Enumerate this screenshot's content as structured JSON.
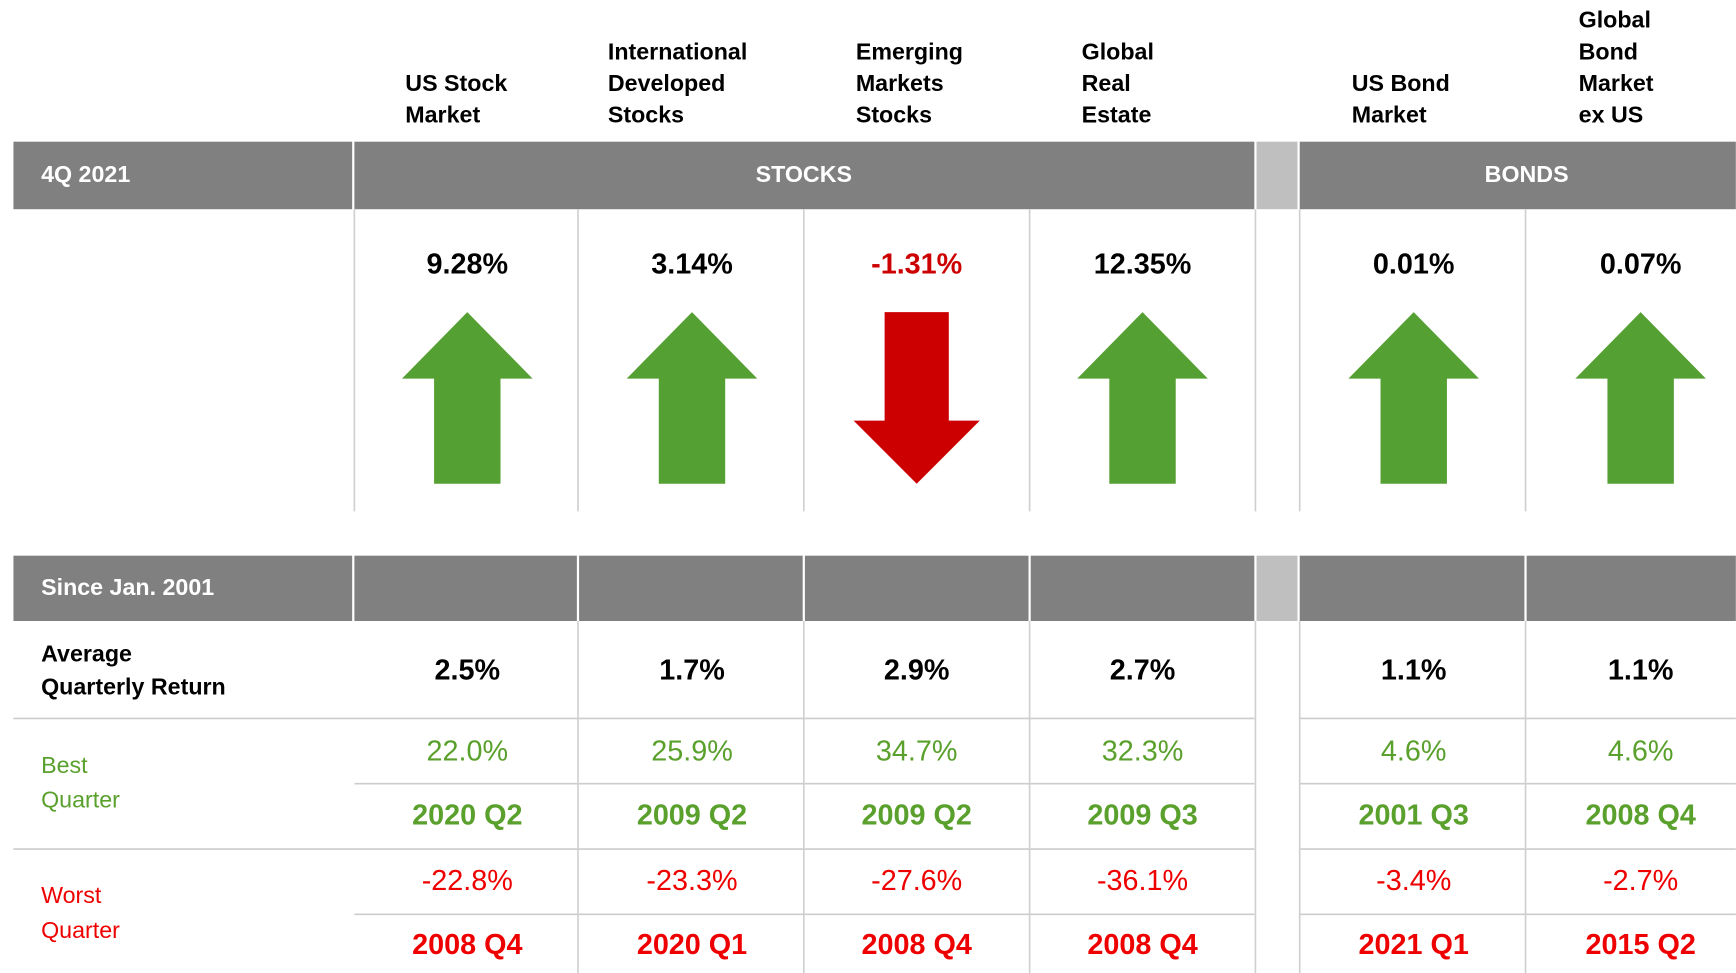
{
  "header": {
    "period_label": "4Q 2021",
    "since_label": "Since Jan. 2001",
    "stocks_label": "STOCKS",
    "bonds_label": "BONDS"
  },
  "row_labels": {
    "average": [
      "Average",
      "Quarterly Return"
    ],
    "best": [
      "Best",
      "Quarter"
    ],
    "worst": [
      "Worst",
      "Quarter"
    ]
  },
  "columns": [
    {
      "name": [
        "US Stock",
        "Market"
      ],
      "quarter_return": "9.28%",
      "average": "2.5%",
      "best": "22.0%",
      "best_quarter": "2020 Q2",
      "worst": "-22.8%",
      "worst_quarter": "2008 Q4"
    },
    {
      "name": [
        "International",
        "Developed",
        "Stocks"
      ],
      "quarter_return": "3.14%",
      "average": "1.7%",
      "best": "25.9%",
      "best_quarter": "2009 Q2",
      "worst": "-23.3%",
      "worst_quarter": "2020 Q1"
    },
    {
      "name": [
        "Emerging",
        "Markets",
        "Stocks"
      ],
      "quarter_return": "-1.31%",
      "average": "2.9%",
      "best": "34.7%",
      "best_quarter": "2009 Q2",
      "worst": "-27.6%",
      "worst_quarter": "2008 Q4"
    },
    {
      "name": [
        "Global",
        "Real",
        "Estate"
      ],
      "quarter_return": "12.35%",
      "average": "2.7%",
      "best": "32.3%",
      "best_quarter": "2009 Q3",
      "worst": "-36.1%",
      "worst_quarter": "2008 Q4"
    },
    {
      "name": [
        "US Bond",
        "Market"
      ],
      "quarter_return": "0.01%",
      "average": "1.1%",
      "best": "4.6%",
      "best_quarter": "2001 Q3",
      "worst": "-3.4%",
      "worst_quarter": "2021 Q1"
    },
    {
      "name": [
        "Global",
        "Bond",
        "Market",
        "ex US"
      ],
      "quarter_return": "0.07%",
      "average": "1.1%",
      "best": "4.6%",
      "best_quarter": "2008 Q4",
      "worst": "-2.7%",
      "worst_quarter": "2015 Q2"
    }
  ]
}
